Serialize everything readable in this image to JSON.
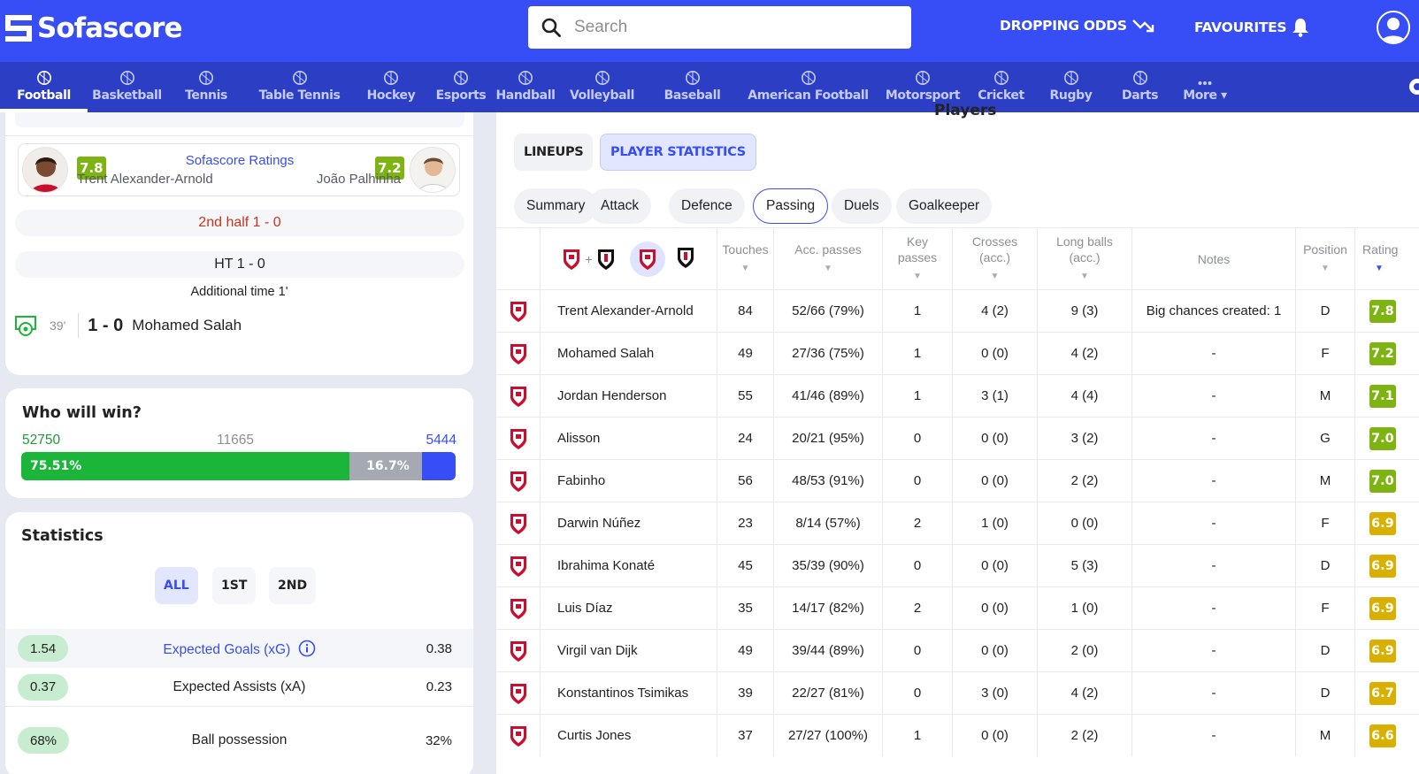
{
  "header": {
    "logo_text": "Sofascore",
    "search_placeholder": "Search",
    "dropping_odds": "DROPPING ODDS",
    "favourites": "FAVOURITES"
  },
  "sports_nav": [
    {
      "label": "Football",
      "icon": "football-icon",
      "active": true
    },
    {
      "label": "Basketball",
      "icon": "basketball-icon"
    },
    {
      "label": "Tennis",
      "icon": "tennis-icon"
    },
    {
      "label": "Table Tennis",
      "icon": "table-tennis-icon"
    },
    {
      "label": "Hockey",
      "icon": "hockey-icon"
    },
    {
      "label": "Esports",
      "icon": "esports-icon"
    },
    {
      "label": "Handball",
      "icon": "handball-icon"
    },
    {
      "label": "Volleyball",
      "icon": "volleyball-icon"
    },
    {
      "label": "Baseball",
      "icon": "baseball-icon"
    },
    {
      "label": "American Football",
      "icon": "american-football-icon"
    },
    {
      "label": "Motorsport",
      "icon": "motorsport-icon"
    },
    {
      "label": "Cricket",
      "icon": "cricket-icon"
    },
    {
      "label": "Rugby",
      "icon": "rugby-icon"
    },
    {
      "label": "Darts",
      "icon": "darts-icon"
    },
    {
      "label": "More",
      "icon": "more-icon"
    }
  ],
  "ratings": {
    "title": "Sofascore Ratings",
    "home_rating": "7.8",
    "home_player": "Trent Alexander-Arnold",
    "away_rating": "7.2",
    "away_player": "João Palhinha"
  },
  "incidents": {
    "second_half": "2nd half 1 - 0",
    "half_time": "HT 1 - 0",
    "additional_time": "Additional time 1'",
    "goal_minute": "39'",
    "goal_score": "1 - 0",
    "goal_player": "Mohamed Salah"
  },
  "who_will_win": {
    "title": "Who will win?",
    "home_votes": "52750",
    "draw_votes": "11665",
    "away_votes": "5444",
    "home_pct_label": "75.51%",
    "draw_pct_label": "16.7%",
    "home_pct": 75.51,
    "draw_pct": 16.7,
    "away_pct": 7.79
  },
  "statistics": {
    "title": "Statistics",
    "periods": [
      "ALL",
      "1ST",
      "2ND"
    ],
    "rows": [
      {
        "home": "1.54",
        "label": "Expected Goals (xG)",
        "away": "0.38",
        "highlight": true
      },
      {
        "home": "0.37",
        "label": "Expected Assists (xA)",
        "away": "0.23"
      },
      {
        "home": "68%",
        "label": "Ball possession",
        "away": "32%"
      }
    ]
  },
  "players_panel": {
    "heading": "Players",
    "buttons": [
      "LINEUPS",
      "PLAYER STATISTICS"
    ],
    "chips": [
      "Summary",
      "Attack",
      "Defence",
      "Passing",
      "Duels",
      "Goalkeeper"
    ],
    "active_chip": "Passing",
    "headers": [
      "Touches",
      "Acc. passes",
      "Key passes",
      "Crosses (acc.)",
      "Long balls (acc.)",
      "Notes",
      "Position",
      "Rating"
    ],
    "rows": [
      {
        "name": "Trent Alexander-Arnold",
        "touches": "84",
        "acc_passes": "52/66 (79%)",
        "key_passes": "1",
        "crosses": "4 (2)",
        "long_balls": "9 (3)",
        "notes": "Big chances created: 1",
        "position": "D",
        "rating": "7.8"
      },
      {
        "name": "Mohamed Salah",
        "touches": "49",
        "acc_passes": "27/36 (75%)",
        "key_passes": "1",
        "crosses": "0 (0)",
        "long_balls": "4 (2)",
        "notes": "-",
        "position": "F",
        "rating": "7.2"
      },
      {
        "name": "Jordan Henderson",
        "touches": "55",
        "acc_passes": "41/46 (89%)",
        "key_passes": "1",
        "crosses": "3 (1)",
        "long_balls": "4 (4)",
        "notes": "-",
        "position": "M",
        "rating": "7.1"
      },
      {
        "name": "Alisson",
        "touches": "24",
        "acc_passes": "20/21 (95%)",
        "key_passes": "0",
        "crosses": "0 (0)",
        "long_balls": "3 (2)",
        "notes": "-",
        "position": "G",
        "rating": "7.0"
      },
      {
        "name": "Fabinho",
        "touches": "56",
        "acc_passes": "48/53 (91%)",
        "key_passes": "0",
        "crosses": "0 (0)",
        "long_balls": "2 (2)",
        "notes": "-",
        "position": "M",
        "rating": "7.0"
      },
      {
        "name": "Darwin Núñez",
        "touches": "23",
        "acc_passes": "8/14 (57%)",
        "key_passes": "2",
        "crosses": "1 (0)",
        "long_balls": "0 (0)",
        "notes": "-",
        "position": "F",
        "rating": "6.9"
      },
      {
        "name": "Ibrahima Konaté",
        "touches": "45",
        "acc_passes": "35/39 (90%)",
        "key_passes": "0",
        "crosses": "0 (0)",
        "long_balls": "5 (3)",
        "notes": "-",
        "position": "D",
        "rating": "6.9"
      },
      {
        "name": "Luis Díaz",
        "touches": "35",
        "acc_passes": "14/17 (82%)",
        "key_passes": "2",
        "crosses": "0 (0)",
        "long_balls": "1 (0)",
        "notes": "-",
        "position": "F",
        "rating": "6.9"
      },
      {
        "name": "Virgil van Dijk",
        "touches": "49",
        "acc_passes": "39/44 (89%)",
        "key_passes": "0",
        "crosses": "0 (0)",
        "long_balls": "2 (0)",
        "notes": "-",
        "position": "D",
        "rating": "6.9"
      },
      {
        "name": "Konstantinos Tsimikas",
        "touches": "39",
        "acc_passes": "22/27 (81%)",
        "key_passes": "0",
        "crosses": "3 (0)",
        "long_balls": "4 (2)",
        "notes": "-",
        "position": "D",
        "rating": "6.7"
      },
      {
        "name": "Curtis Jones",
        "touches": "37",
        "acc_passes": "27/27 (100%)",
        "key_passes": "1",
        "crosses": "0 (0)",
        "long_balls": "2 (2)",
        "notes": "-",
        "position": "M",
        "rating": "6.6"
      }
    ]
  },
  "colors": {
    "brand": "#374df5",
    "nav": "#2c3ec4",
    "rating_high": "#7eb411",
    "rating_mid": "#d9af00",
    "home_bar": "#1bb53a",
    "draw_bar": "#a4a9b3",
    "away_bar": "#374df5",
    "liverpool_red": "#c8102e"
  }
}
